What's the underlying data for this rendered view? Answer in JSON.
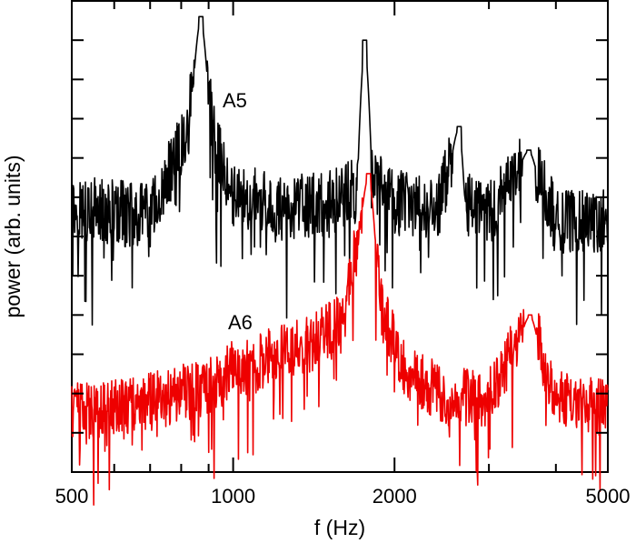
{
  "chart_data": {
    "type": "line",
    "xlabel": "f (Hz)",
    "ylabel": "power (arb. units)",
    "x_scale": "log",
    "xlim": [
      500,
      5000
    ],
    "ylim": [
      0,
      12
    ],
    "x_ticks": [
      {
        "value": 500,
        "label": "500"
      },
      {
        "value": 1000,
        "label": "1000"
      },
      {
        "value": 2000,
        "label": "2000"
      },
      {
        "value": 5000,
        "label": "5000"
      }
    ],
    "grid": false,
    "series": [
      {
        "name": "A5",
        "color": "#000000",
        "baseline": 6.6,
        "noise": 0.85,
        "peaks": [
          {
            "x": 870,
            "y": 11.6
          },
          {
            "x": 1760,
            "y": 11.0
          },
          {
            "x": 2640,
            "y": 8.8
          },
          {
            "x": 3560,
            "y": 8.2
          }
        ],
        "points": [
          [
            500,
            6.7
          ],
          [
            600,
            6.6
          ],
          [
            700,
            6.5
          ],
          [
            760,
            7.6
          ],
          [
            820,
            8.6
          ],
          [
            870,
            11.6
          ],
          [
            920,
            8.5
          ],
          [
            1000,
            7.1
          ],
          [
            1200,
            6.7
          ],
          [
            1500,
            6.8
          ],
          [
            1700,
            7.2
          ],
          [
            1760,
            11.0
          ],
          [
            1820,
            7.4
          ],
          [
            2000,
            6.9
          ],
          [
            2400,
            6.6
          ],
          [
            2640,
            8.8
          ],
          [
            2700,
            6.9
          ],
          [
            3000,
            6.5
          ],
          [
            3560,
            8.2
          ],
          [
            4000,
            6.4
          ],
          [
            5000,
            6.4
          ]
        ]
      },
      {
        "name": "A6",
        "color": "#ee0000",
        "baseline": 2.4,
        "noise": 0.75,
        "peaks": [
          {
            "x": 1790,
            "y": 7.6
          },
          {
            "x": 3580,
            "y": 4.0
          }
        ],
        "points": [
          [
            500,
            1.5
          ],
          [
            700,
            1.8
          ],
          [
            900,
            2.2
          ],
          [
            1000,
            2.6
          ],
          [
            1200,
            3.0
          ],
          [
            1400,
            3.3
          ],
          [
            1600,
            3.8
          ],
          [
            1790,
            7.6
          ],
          [
            1900,
            4.0
          ],
          [
            2100,
            2.6
          ],
          [
            2500,
            1.9
          ],
          [
            3000,
            1.9
          ],
          [
            3580,
            4.0
          ],
          [
            4000,
            1.9
          ],
          [
            5000,
            1.6
          ]
        ]
      }
    ]
  }
}
